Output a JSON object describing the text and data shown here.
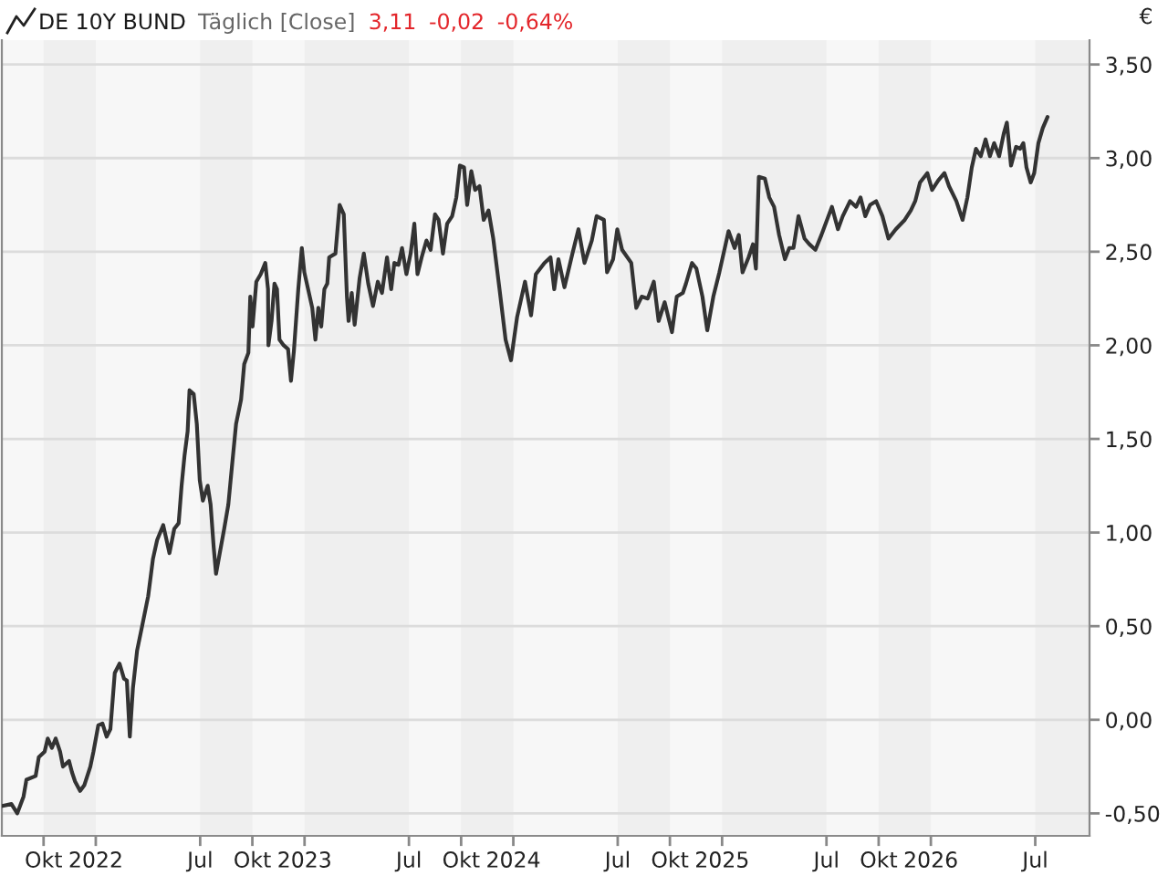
{
  "chart_data": {
    "type": "line",
    "title": "DE 10Y BUND",
    "subtitle": "Täglich [Close]",
    "annotations": [
      "3,11",
      "-0,02",
      "-0,64%"
    ],
    "ylabel": "€",
    "color": "#333333",
    "line_style": "solid",
    "marker": "none",
    "grid": "y",
    "legend": false,
    "x": [
      2021.552,
      2021.596,
      2021.624,
      2021.654,
      2021.668,
      2021.712,
      2021.727,
      2021.755,
      2021.77,
      2021.79,
      2021.808,
      2021.829,
      2021.843,
      2021.872,
      2021.886,
      2021.901,
      2021.925,
      2021.945,
      2021.974,
      2021.989,
      2022.012,
      2022.032,
      2022.052,
      2022.07,
      2022.091,
      2022.114,
      2022.135,
      2022.149,
      2022.163,
      2022.178,
      2022.198,
      2022.222,
      2022.251,
      2022.274,
      2022.294,
      2022.323,
      2022.353,
      2022.376,
      2022.397,
      2022.411,
      2022.425,
      2022.44,
      2022.449,
      2022.469,
      2022.484,
      2022.498,
      2022.513,
      2022.536,
      2022.55,
      2022.565,
      2022.576,
      2022.594,
      2022.615,
      2022.635,
      2022.652,
      2022.672,
      2022.696,
      2022.711,
      2022.731,
      2022.74,
      2022.751,
      2022.769,
      2022.79,
      2022.812,
      2022.825,
      2022.827,
      2022.842,
      2022.856,
      2022.868,
      2022.88,
      2022.9,
      2022.921,
      2022.935,
      2022.949,
      2022.97,
      2022.987,
      2022.999,
      2023.017,
      2023.037,
      2023.052,
      2023.066,
      2023.08,
      2023.095,
      2023.109,
      2023.118,
      2023.148,
      2023.168,
      2023.188,
      2023.203,
      2023.211,
      2023.226,
      2023.24,
      2023.264,
      2023.284,
      2023.305,
      2023.328,
      2023.351,
      2023.371,
      2023.395,
      2023.415,
      2023.43,
      2023.45,
      2023.467,
      2023.488,
      2023.508,
      2023.526,
      2023.541,
      2023.561,
      2023.584,
      2023.604,
      2023.625,
      2023.642,
      2023.663,
      2023.683,
      2023.707,
      2023.727,
      2023.744,
      2023.764,
      2023.779,
      2023.799,
      2023.817,
      2023.838,
      2023.858,
      2023.881,
      2023.904,
      2023.934,
      2023.963,
      2023.989,
      2024.018,
      2024.056,
      2024.085,
      2024.108,
      2024.149,
      2024.178,
      2024.196,
      2024.216,
      2024.245,
      2024.283,
      2024.312,
      2024.341,
      2024.376,
      2024.399,
      2024.434,
      2024.449,
      2024.478,
      2024.498,
      2024.521,
      2024.565,
      2024.589,
      2024.615,
      2024.644,
      2024.673,
      2024.696,
      2024.725,
      2024.76,
      2024.783,
      2024.812,
      2024.827,
      2024.856,
      2024.877,
      2024.906,
      2024.929,
      2024.958,
      2024.987,
      2025.017,
      2025.031,
      2025.06,
      2025.08,
      2025.098,
      2025.127,
      2025.148,
      2025.162,
      2025.176,
      2025.205,
      2025.226,
      2025.249,
      2025.273,
      2025.301,
      2025.322,
      2025.342,
      2025.366,
      2025.395,
      2025.418,
      2025.447,
      2025.476,
      2025.526,
      2025.555,
      2025.578,
      2025.613,
      2025.642,
      2025.663,
      2025.686,
      2025.709,
      2025.738,
      2025.768,
      2025.797,
      2025.832,
      2025.875,
      2025.904,
      2025.925,
      2025.948,
      2025.983,
      2026.006,
      2026.035,
      2026.065,
      2026.087,
      2026.122,
      2026.152,
      2026.175,
      2026.196,
      2026.216,
      2026.239,
      2026.262,
      2026.283,
      2026.303,
      2026.327,
      2026.349,
      2026.364,
      2026.384,
      2026.408,
      2026.428,
      2026.443,
      2026.458,
      2026.478,
      2026.495,
      2026.515,
      2026.536,
      2026.559
    ],
    "values": [
      -0.46,
      -0.45,
      -0.5,
      -0.41,
      -0.32,
      -0.3,
      -0.2,
      -0.17,
      -0.1,
      -0.15,
      -0.1,
      -0.17,
      -0.25,
      -0.22,
      -0.28,
      -0.33,
      -0.38,
      -0.35,
      -0.25,
      -0.17,
      -0.03,
      -0.02,
      -0.09,
      -0.05,
      0.25,
      0.3,
      0.22,
      0.21,
      -0.09,
      0.17,
      0.37,
      0.5,
      0.66,
      0.86,
      0.96,
      1.04,
      0.89,
      1.02,
      1.05,
      1.25,
      1.41,
      1.54,
      1.76,
      1.74,
      1.58,
      1.28,
      1.17,
      1.25,
      1.15,
      0.92,
      0.78,
      0.89,
      1.02,
      1.15,
      1.35,
      1.58,
      1.71,
      1.9,
      1.96,
      2.26,
      2.1,
      2.34,
      2.38,
      2.44,
      2.3,
      2.0,
      2.13,
      2.33,
      2.3,
      2.03,
      2.0,
      1.98,
      1.81,
      1.97,
      2.3,
      2.52,
      2.39,
      2.3,
      2.2,
      2.03,
      2.2,
      2.1,
      2.3,
      2.33,
      2.47,
      2.49,
      2.75,
      2.7,
      2.26,
      2.13,
      2.28,
      2.11,
      2.36,
      2.49,
      2.33,
      2.21,
      2.34,
      2.28,
      2.47,
      2.3,
      2.44,
      2.43,
      2.52,
      2.38,
      2.49,
      2.65,
      2.38,
      2.47,
      2.56,
      2.51,
      2.7,
      2.67,
      2.49,
      2.65,
      2.69,
      2.79,
      2.96,
      2.95,
      2.75,
      2.93,
      2.83,
      2.85,
      2.67,
      2.72,
      2.57,
      2.3,
      2.03,
      1.92,
      2.15,
      2.34,
      2.16,
      2.38,
      2.44,
      2.47,
      2.3,
      2.46,
      2.31,
      2.49,
      2.62,
      2.44,
      2.56,
      2.69,
      2.67,
      2.39,
      2.46,
      2.62,
      2.51,
      2.44,
      2.2,
      2.26,
      2.25,
      2.34,
      2.13,
      2.23,
      2.07,
      2.26,
      2.28,
      2.33,
      2.44,
      2.41,
      2.26,
      2.08,
      2.26,
      2.39,
      2.54,
      2.61,
      2.52,
      2.59,
      2.39,
      2.47,
      2.54,
      2.41,
      2.9,
      2.89,
      2.79,
      2.74,
      2.59,
      2.46,
      2.52,
      2.52,
      2.69,
      2.57,
      2.54,
      2.51,
      2.59,
      2.74,
      2.62,
      2.69,
      2.77,
      2.74,
      2.79,
      2.69,
      2.75,
      2.77,
      2.69,
      2.57,
      2.62,
      2.67,
      2.72,
      2.77,
      2.87,
      2.92,
      2.83,
      2.88,
      2.92,
      2.85,
      2.77,
      2.67,
      2.79,
      2.95,
      3.05,
      3.01,
      3.1,
      3.01,
      3.08,
      3.01,
      3.13,
      3.19,
      2.96,
      3.06,
      3.05,
      3.08,
      2.95,
      2.87,
      2.92,
      3.08,
      3.16,
      3.22
    ],
    "xlim": [
      2021.55,
      2026.76
    ],
    "xticks": [
      {
        "value": 2021.75,
        "label": "Okt"
      },
      2022,
      {
        "value": 2022.5,
        "label": "Jul"
      },
      {
        "value": 2022.75,
        "label": "Okt"
      },
      2023,
      {
        "value": 2023.5,
        "label": "Jul"
      },
      {
        "value": 2023.75,
        "label": "Okt"
      },
      2024,
      {
        "value": 2024.5,
        "label": "Jul"
      },
      {
        "value": 2024.75,
        "label": "Okt"
      },
      2025,
      {
        "value": 2025.5,
        "label": "Jul"
      },
      {
        "value": 2025.75,
        "label": "Okt"
      },
      2026,
      {
        "value": 2026.5,
        "label": "Jul"
      }
    ],
    "ylim": [
      -0.62,
      3.63
    ],
    "yticks": [
      {
        "value": -0.5,
        "label": "-0,50"
      },
      {
        "value": 0,
        "label": "0,00"
      },
      {
        "value": 0.5,
        "label": "0,50"
      },
      {
        "value": 1,
        "label": "1,00"
      },
      {
        "value": 1.5,
        "label": "1,50"
      },
      {
        "value": 2,
        "label": "2,00"
      },
      {
        "value": 2.5,
        "label": "2,50"
      },
      {
        "value": 3,
        "label": "3,00"
      },
      {
        "value": 3.5,
        "label": "3,50"
      }
    ],
    "bands": [
      {
        "axis": "x",
        "from": 2021.75,
        "to": 2022,
        "color": "#efefef"
      },
      {
        "axis": "x",
        "from": 2022.5,
        "to": 2022.75,
        "color": "#efefef"
      },
      {
        "axis": "x",
        "from": 2023,
        "to": 2023.5,
        "color": "#efefef"
      },
      {
        "axis": "x",
        "from": 2023.75,
        "to": 2024,
        "color": "#efefef"
      },
      {
        "axis": "x",
        "from": 2024.5,
        "to": 2024.75,
        "color": "#efefef"
      },
      {
        "axis": "x",
        "from": 2025,
        "to": 2025.5,
        "color": "#efefef"
      },
      {
        "axis": "x",
        "from": 2025.75,
        "to": 2026,
        "color": "#efefef"
      },
      {
        "axis": "x",
        "from": 2026.5,
        "to": 2026.76,
        "color": "#efefef"
      }
    ]
  }
}
